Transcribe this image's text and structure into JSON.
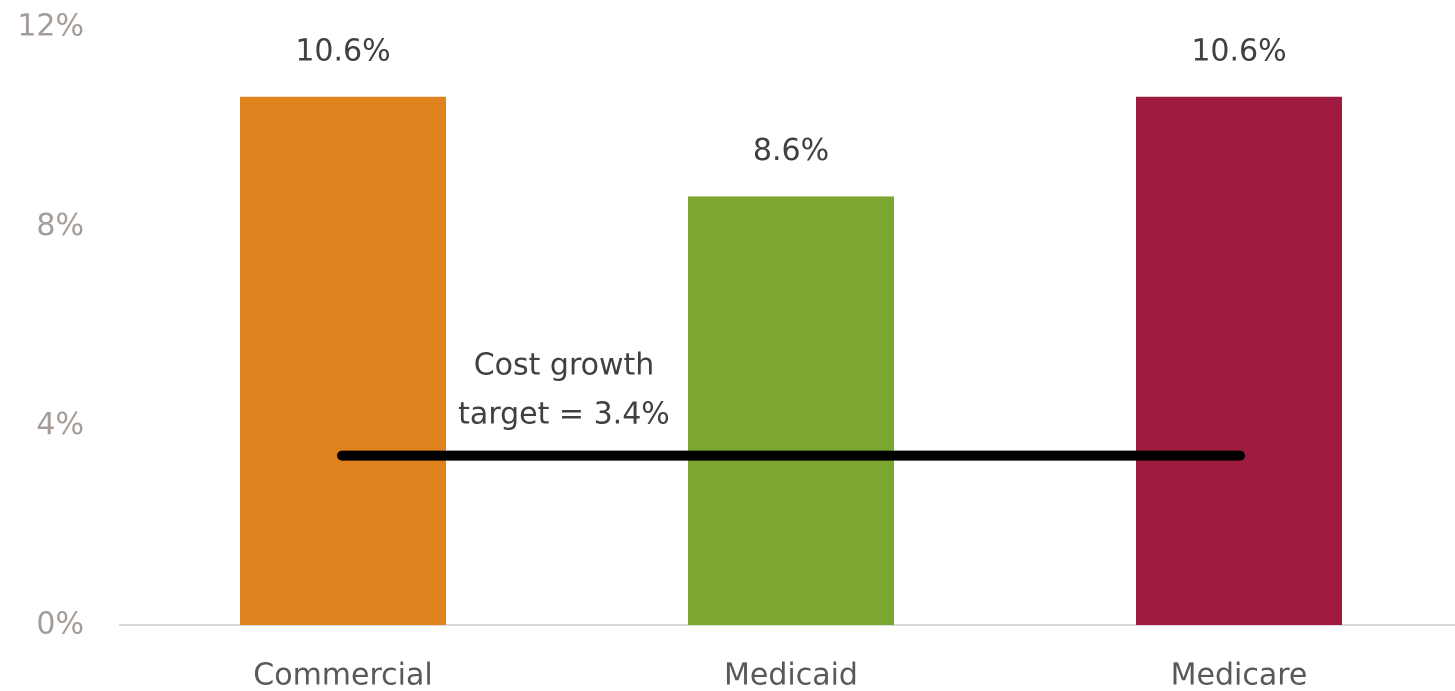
{
  "chart_data": {
    "type": "bar",
    "categories": [
      "Commercial",
      "Medicaid",
      "Medicare"
    ],
    "values": [
      10.6,
      8.6,
      10.6
    ],
    "value_labels": [
      "10.6%",
      "8.6%",
      "10.6%"
    ],
    "colors": [
      "#e0821e",
      "#7ba731",
      "#9e1b3f"
    ],
    "ylim": [
      0,
      12
    ],
    "yticks": [
      {
        "value": 0,
        "label": "0%"
      },
      {
        "value": 4,
        "label": "4%"
      },
      {
        "value": 8,
        "label": "8%"
      },
      {
        "value": 12,
        "label": "12%"
      }
    ],
    "target": {
      "value": 3.4,
      "color": "#000000",
      "annotation": [
        "Cost growth",
        "target = 3.4%"
      ]
    }
  }
}
